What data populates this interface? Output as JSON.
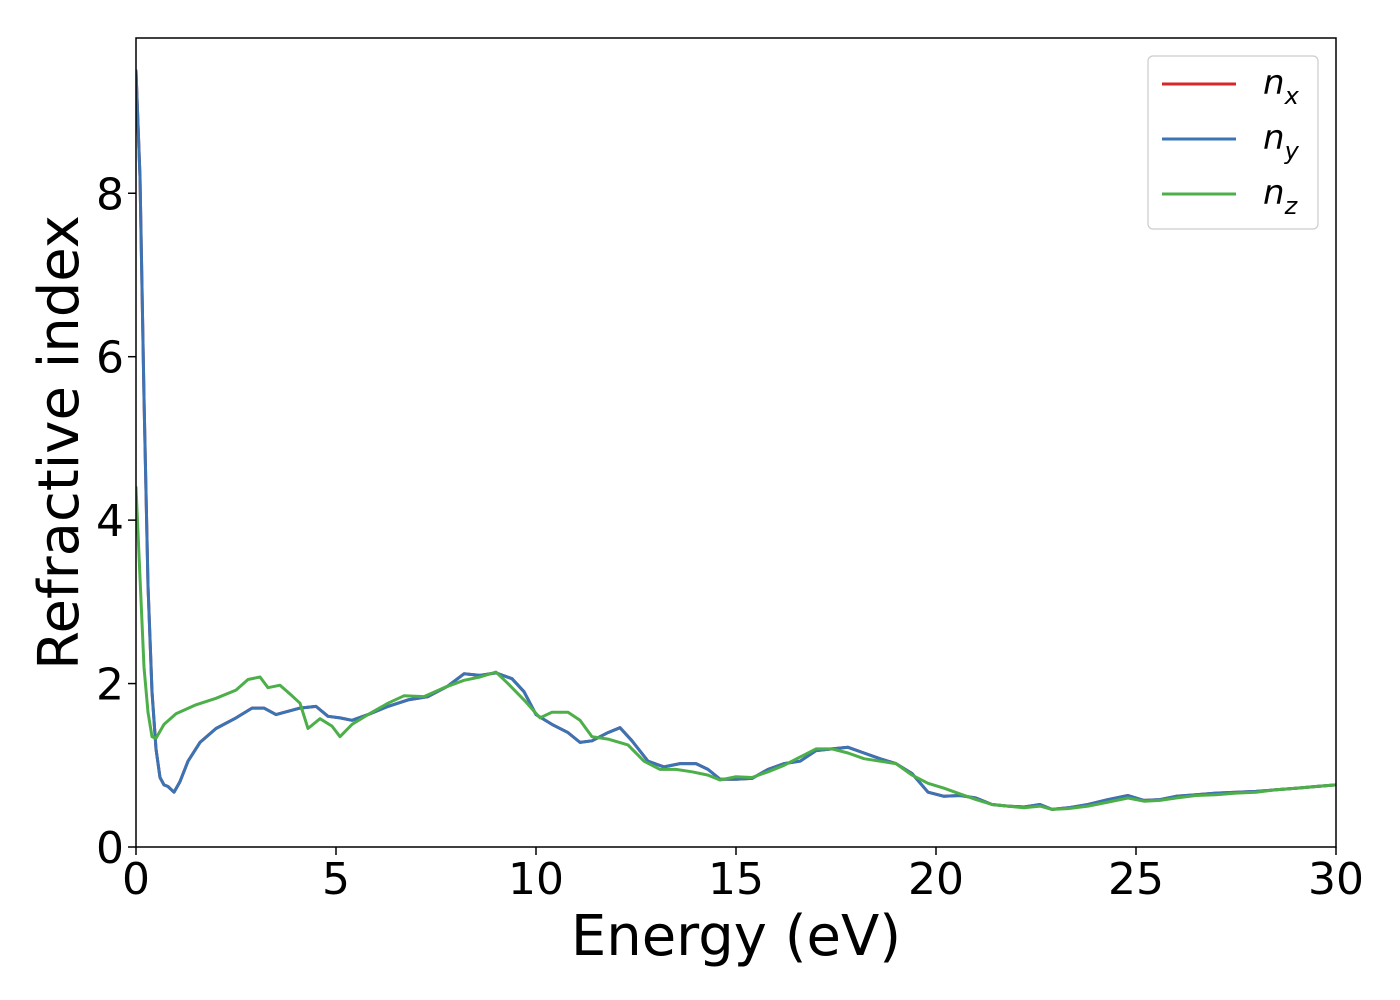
{
  "chart_data": {
    "type": "line",
    "xlabel": "Energy (eV)",
    "ylabel": "Refractive index",
    "xlim": [
      0,
      30
    ],
    "ylim": [
      0,
      9.9
    ],
    "xticks": [
      0,
      5,
      10,
      15,
      20,
      25,
      30
    ],
    "xtick_labels": [
      "0",
      "5",
      "10",
      "15",
      "20",
      "25",
      "30"
    ],
    "yticks": [
      0,
      2,
      4,
      6,
      8
    ],
    "ytick_labels": [
      "0",
      "2",
      "4",
      "6",
      "8"
    ],
    "grid": false,
    "legend_position": "top-right",
    "series": [
      {
        "key": "nx",
        "label_base": "n",
        "label_sub": "x",
        "color": "#d62728",
        "points": [
          [
            0,
            9.5
          ],
          [
            0.1,
            8.2
          ],
          [
            0.2,
            5.5
          ],
          [
            0.3,
            3.2
          ],
          [
            0.4,
            1.9
          ],
          [
            0.5,
            1.2
          ],
          [
            0.6,
            0.85
          ],
          [
            0.7,
            0.76
          ],
          [
            0.8,
            0.74
          ],
          [
            0.95,
            0.67
          ],
          [
            1.1,
            0.8
          ],
          [
            1.3,
            1.05
          ],
          [
            1.6,
            1.28
          ],
          [
            2,
            1.45
          ],
          [
            2.5,
            1.58
          ],
          [
            2.9,
            1.7
          ],
          [
            3.2,
            1.7
          ],
          [
            3.5,
            1.62
          ],
          [
            3.8,
            1.66
          ],
          [
            4.1,
            1.7
          ],
          [
            4.5,
            1.72
          ],
          [
            4.8,
            1.6
          ],
          [
            5.1,
            1.58
          ],
          [
            5.4,
            1.55
          ],
          [
            5.8,
            1.62
          ],
          [
            6.3,
            1.72
          ],
          [
            6.8,
            1.8
          ],
          [
            7.3,
            1.84
          ],
          [
            7.8,
            1.97
          ],
          [
            8.2,
            2.12
          ],
          [
            8.6,
            2.1
          ],
          [
            9,
            2.13
          ],
          [
            9.4,
            2.06
          ],
          [
            9.7,
            1.9
          ],
          [
            10,
            1.62
          ],
          [
            10.4,
            1.5
          ],
          [
            10.8,
            1.4
          ],
          [
            11.1,
            1.28
          ],
          [
            11.4,
            1.3
          ],
          [
            11.8,
            1.4
          ],
          [
            12.1,
            1.46
          ],
          [
            12.4,
            1.3
          ],
          [
            12.8,
            1.05
          ],
          [
            13.2,
            0.98
          ],
          [
            13.6,
            1.02
          ],
          [
            14,
            1.02
          ],
          [
            14.3,
            0.95
          ],
          [
            14.6,
            0.83
          ],
          [
            15,
            0.83
          ],
          [
            15.4,
            0.84
          ],
          [
            15.8,
            0.95
          ],
          [
            16.2,
            1.02
          ],
          [
            16.6,
            1.05
          ],
          [
            17,
            1.18
          ],
          [
            17.4,
            1.2
          ],
          [
            17.8,
            1.22
          ],
          [
            18.2,
            1.15
          ],
          [
            18.6,
            1.08
          ],
          [
            19,
            1.02
          ],
          [
            19.4,
            0.9
          ],
          [
            19.8,
            0.67
          ],
          [
            20.2,
            0.62
          ],
          [
            20.6,
            0.63
          ],
          [
            21,
            0.6
          ],
          [
            21.4,
            0.52
          ],
          [
            21.8,
            0.5
          ],
          [
            22.2,
            0.49
          ],
          [
            22.6,
            0.52
          ],
          [
            22.9,
            0.46
          ],
          [
            23.3,
            0.48
          ],
          [
            23.8,
            0.52
          ],
          [
            24.3,
            0.58
          ],
          [
            24.8,
            0.63
          ],
          [
            25.2,
            0.57
          ],
          [
            25.6,
            0.58
          ],
          [
            26,
            0.62
          ],
          [
            26.5,
            0.64
          ],
          [
            27,
            0.66
          ],
          [
            27.5,
            0.67
          ],
          [
            28,
            0.68
          ],
          [
            28.5,
            0.7
          ],
          [
            29,
            0.72
          ],
          [
            29.5,
            0.74
          ],
          [
            30,
            0.76
          ]
        ]
      },
      {
        "key": "ny",
        "label_base": "n",
        "label_sub": "y",
        "color": "#3a74b4",
        "points": [
          [
            0,
            9.5
          ],
          [
            0.1,
            8.2
          ],
          [
            0.2,
            5.5
          ],
          [
            0.3,
            3.2
          ],
          [
            0.4,
            1.9
          ],
          [
            0.5,
            1.2
          ],
          [
            0.6,
            0.85
          ],
          [
            0.7,
            0.76
          ],
          [
            0.8,
            0.74
          ],
          [
            0.95,
            0.67
          ],
          [
            1.1,
            0.8
          ],
          [
            1.3,
            1.05
          ],
          [
            1.6,
            1.28
          ],
          [
            2,
            1.45
          ],
          [
            2.5,
            1.58
          ],
          [
            2.9,
            1.7
          ],
          [
            3.2,
            1.7
          ],
          [
            3.5,
            1.62
          ],
          [
            3.8,
            1.66
          ],
          [
            4.1,
            1.7
          ],
          [
            4.5,
            1.72
          ],
          [
            4.8,
            1.6
          ],
          [
            5.1,
            1.58
          ],
          [
            5.4,
            1.55
          ],
          [
            5.8,
            1.62
          ],
          [
            6.3,
            1.72
          ],
          [
            6.8,
            1.8
          ],
          [
            7.3,
            1.84
          ],
          [
            7.8,
            1.97
          ],
          [
            8.2,
            2.12
          ],
          [
            8.6,
            2.1
          ],
          [
            9,
            2.13
          ],
          [
            9.4,
            2.06
          ],
          [
            9.7,
            1.9
          ],
          [
            10,
            1.62
          ],
          [
            10.4,
            1.5
          ],
          [
            10.8,
            1.4
          ],
          [
            11.1,
            1.28
          ],
          [
            11.4,
            1.3
          ],
          [
            11.8,
            1.4
          ],
          [
            12.1,
            1.46
          ],
          [
            12.4,
            1.3
          ],
          [
            12.8,
            1.05
          ],
          [
            13.2,
            0.98
          ],
          [
            13.6,
            1.02
          ],
          [
            14,
            1.02
          ],
          [
            14.3,
            0.95
          ],
          [
            14.6,
            0.83
          ],
          [
            15,
            0.83
          ],
          [
            15.4,
            0.84
          ],
          [
            15.8,
            0.95
          ],
          [
            16.2,
            1.02
          ],
          [
            16.6,
            1.05
          ],
          [
            17,
            1.18
          ],
          [
            17.4,
            1.2
          ],
          [
            17.8,
            1.22
          ],
          [
            18.2,
            1.15
          ],
          [
            18.6,
            1.08
          ],
          [
            19,
            1.02
          ],
          [
            19.4,
            0.9
          ],
          [
            19.8,
            0.67
          ],
          [
            20.2,
            0.62
          ],
          [
            20.6,
            0.63
          ],
          [
            21,
            0.6
          ],
          [
            21.4,
            0.52
          ],
          [
            21.8,
            0.5
          ],
          [
            22.2,
            0.49
          ],
          [
            22.6,
            0.52
          ],
          [
            22.9,
            0.46
          ],
          [
            23.3,
            0.48
          ],
          [
            23.8,
            0.52
          ],
          [
            24.3,
            0.58
          ],
          [
            24.8,
            0.63
          ],
          [
            25.2,
            0.57
          ],
          [
            25.6,
            0.58
          ],
          [
            26,
            0.62
          ],
          [
            26.5,
            0.64
          ],
          [
            27,
            0.66
          ],
          [
            27.5,
            0.67
          ],
          [
            28,
            0.68
          ],
          [
            28.5,
            0.7
          ],
          [
            29,
            0.72
          ],
          [
            29.5,
            0.74
          ],
          [
            30,
            0.76
          ]
        ]
      },
      {
        "key": "nz",
        "label_base": "n",
        "label_sub": "z",
        "color": "#4daf4a",
        "points": [
          [
            0,
            4.4
          ],
          [
            0.1,
            3.3
          ],
          [
            0.2,
            2.2
          ],
          [
            0.3,
            1.65
          ],
          [
            0.4,
            1.35
          ],
          [
            0.5,
            1.33
          ],
          [
            0.7,
            1.5
          ],
          [
            1,
            1.63
          ],
          [
            1.5,
            1.74
          ],
          [
            2,
            1.82
          ],
          [
            2.5,
            1.92
          ],
          [
            2.8,
            2.05
          ],
          [
            3.1,
            2.08
          ],
          [
            3.3,
            1.95
          ],
          [
            3.6,
            1.98
          ],
          [
            3.9,
            1.85
          ],
          [
            4.1,
            1.76
          ],
          [
            4.3,
            1.45
          ],
          [
            4.6,
            1.57
          ],
          [
            4.9,
            1.48
          ],
          [
            5.1,
            1.35
          ],
          [
            5.4,
            1.5
          ],
          [
            5.8,
            1.62
          ],
          [
            6.3,
            1.76
          ],
          [
            6.7,
            1.85
          ],
          [
            7.2,
            1.84
          ],
          [
            7.7,
            1.95
          ],
          [
            8.2,
            2.04
          ],
          [
            8.6,
            2.08
          ],
          [
            9,
            2.14
          ],
          [
            9.3,
            2.0
          ],
          [
            9.7,
            1.8
          ],
          [
            10.1,
            1.58
          ],
          [
            10.4,
            1.65
          ],
          [
            10.8,
            1.65
          ],
          [
            11.1,
            1.55
          ],
          [
            11.4,
            1.35
          ],
          [
            11.8,
            1.32
          ],
          [
            12.3,
            1.25
          ],
          [
            12.7,
            1.05
          ],
          [
            13.1,
            0.95
          ],
          [
            13.5,
            0.95
          ],
          [
            13.9,
            0.92
          ],
          [
            14.3,
            0.88
          ],
          [
            14.6,
            0.82
          ],
          [
            15,
            0.86
          ],
          [
            15.4,
            0.85
          ],
          [
            15.8,
            0.92
          ],
          [
            16.2,
            1.0
          ],
          [
            16.6,
            1.1
          ],
          [
            17,
            1.2
          ],
          [
            17.4,
            1.2
          ],
          [
            17.8,
            1.15
          ],
          [
            18.2,
            1.08
          ],
          [
            18.6,
            1.05
          ],
          [
            19,
            1.02
          ],
          [
            19.4,
            0.88
          ],
          [
            19.8,
            0.78
          ],
          [
            20.2,
            0.72
          ],
          [
            20.6,
            0.65
          ],
          [
            21,
            0.58
          ],
          [
            21.4,
            0.52
          ],
          [
            21.8,
            0.5
          ],
          [
            22.2,
            0.48
          ],
          [
            22.6,
            0.5
          ],
          [
            22.9,
            0.46
          ],
          [
            23.3,
            0.47
          ],
          [
            23.8,
            0.5
          ],
          [
            24.3,
            0.55
          ],
          [
            24.8,
            0.6
          ],
          [
            25.2,
            0.56
          ],
          [
            25.6,
            0.57
          ],
          [
            26,
            0.6
          ],
          [
            26.5,
            0.63
          ],
          [
            27,
            0.64
          ],
          [
            27.5,
            0.66
          ],
          [
            28,
            0.67
          ],
          [
            28.5,
            0.7
          ],
          [
            29,
            0.72
          ],
          [
            29.5,
            0.74
          ],
          [
            30,
            0.76
          ]
        ]
      }
    ]
  }
}
